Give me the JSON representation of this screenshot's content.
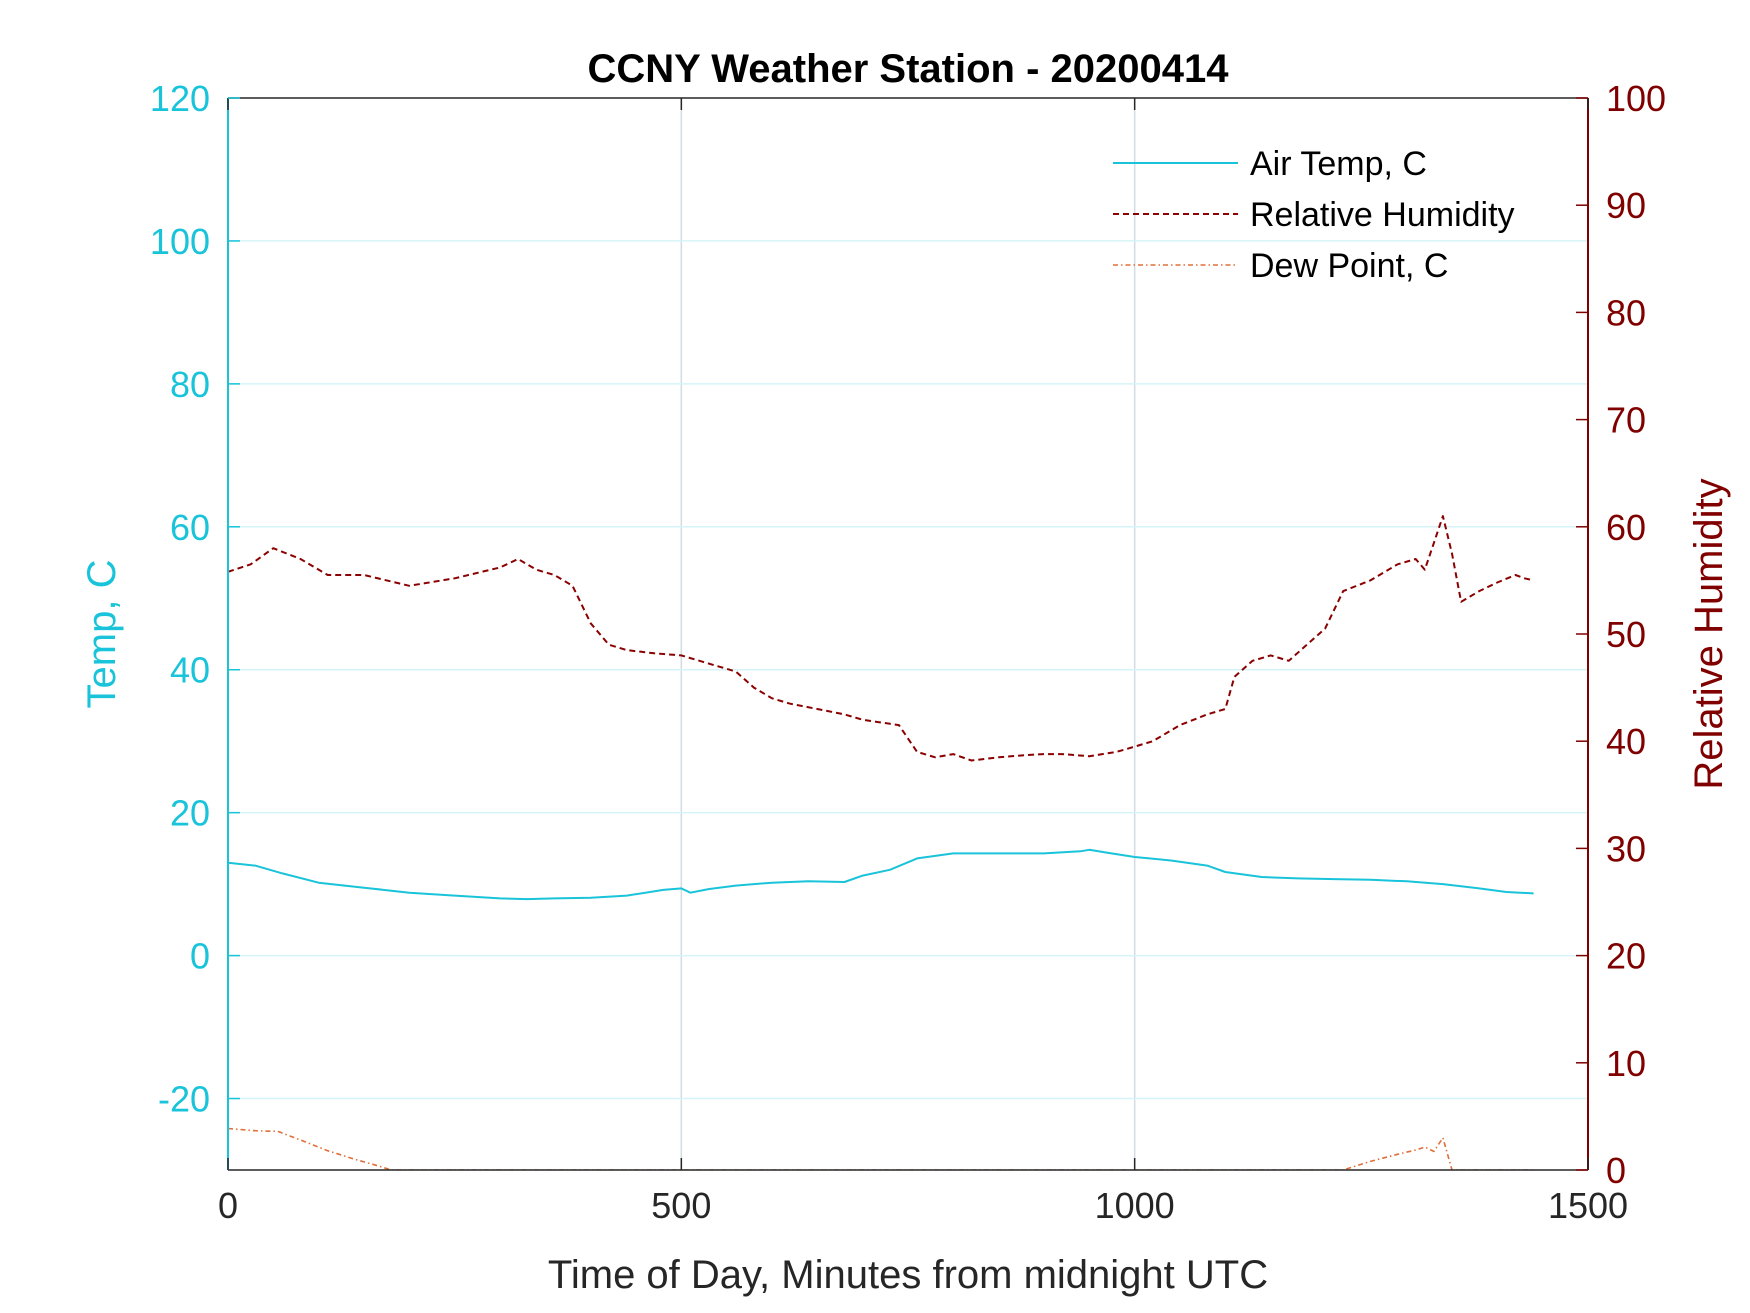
{
  "chart_data": {
    "type": "line",
    "title": "CCNY Weather Station - 20200414",
    "xlabel": "Time of Day, Minutes from midnight UTC",
    "ylabel_left": "Temp, C",
    "ylabel_right": "Relative Humidity",
    "xlim": [
      0,
      1500
    ],
    "ylim_left": [
      -30,
      120
    ],
    "ylim_right": [
      0,
      100
    ],
    "x_ticks": [
      0,
      500,
      1000,
      1500
    ],
    "y_ticks_left": [
      -20,
      0,
      20,
      40,
      60,
      80,
      100,
      120
    ],
    "y_ticks_right": [
      0,
      10,
      20,
      30,
      40,
      50,
      60,
      70,
      80,
      90,
      100
    ],
    "x_tick_labels": [
      "0",
      "500",
      "1000",
      "1500"
    ],
    "y_tick_labels_left": [
      "-20",
      "0",
      "20",
      "40",
      "60",
      "80",
      "100",
      "120"
    ],
    "y_tick_labels_right": [
      "0",
      "10",
      "20",
      "30",
      "40",
      "50",
      "60",
      "70",
      "80",
      "90",
      "100"
    ],
    "grid": true,
    "legend_position": "top-right",
    "colors": {
      "left_axis": "#19c3d9",
      "right_axis": "#800000",
      "air_temp": "#19c3d9",
      "humidity": "#8b0000",
      "dew_point": "#e0703a"
    },
    "series": [
      {
        "name": "Air Temp, C",
        "axis": "left",
        "style": "solid",
        "x": [
          0,
          30,
          60,
          100,
          150,
          200,
          250,
          300,
          330,
          360,
          400,
          440,
          480,
          500,
          510,
          530,
          560,
          600,
          640,
          680,
          700,
          730,
          760,
          800,
          850,
          900,
          940,
          950,
          970,
          1000,
          1040,
          1080,
          1100,
          1140,
          1180,
          1220,
          1260,
          1300,
          1340,
          1380,
          1410,
          1440
        ],
        "values": [
          13.0,
          12.6,
          11.5,
          10.2,
          9.5,
          8.8,
          8.4,
          8.0,
          7.9,
          8.0,
          8.1,
          8.4,
          9.2,
          9.4,
          8.8,
          9.3,
          9.8,
          10.2,
          10.4,
          10.3,
          11.2,
          12.0,
          13.6,
          14.3,
          14.3,
          14.3,
          14.6,
          14.8,
          14.4,
          13.8,
          13.3,
          12.6,
          11.7,
          11.0,
          10.8,
          10.7,
          10.6,
          10.4,
          10.0,
          9.4,
          8.9,
          8.7
        ]
      },
      {
        "name": "Relative Humidity",
        "axis": "right",
        "style": "dashed",
        "x": [
          0,
          25,
          50,
          80,
          110,
          150,
          200,
          250,
          300,
          320,
          340,
          360,
          380,
          400,
          420,
          440,
          470,
          500,
          520,
          540,
          560,
          580,
          600,
          620,
          650,
          680,
          700,
          740,
          760,
          780,
          800,
          820,
          850,
          880,
          900,
          920,
          950,
          980,
          1000,
          1020,
          1050,
          1080,
          1100,
          1110,
          1130,
          1150,
          1170,
          1190,
          1210,
          1230,
          1260,
          1290,
          1310,
          1320,
          1330,
          1340,
          1350,
          1360,
          1380,
          1400,
          1420,
          1430,
          1440
        ],
        "values": [
          55.8,
          56.5,
          58.0,
          57.0,
          55.5,
          55.5,
          54.5,
          55.2,
          56.2,
          57.0,
          56.0,
          55.5,
          54.5,
          51.0,
          49.0,
          48.5,
          48.2,
          48.0,
          47.5,
          47.0,
          46.5,
          45.0,
          44.0,
          43.5,
          43.0,
          42.5,
          42.0,
          41.5,
          39.0,
          38.5,
          38.8,
          38.2,
          38.5,
          38.7,
          38.8,
          38.8,
          38.6,
          39.0,
          39.5,
          40.0,
          41.5,
          42.5,
          43.0,
          46.0,
          47.5,
          48.0,
          47.5,
          49.0,
          50.5,
          54.0,
          55.0,
          56.5,
          57.0,
          56.0,
          58.5,
          61.0,
          57.5,
          53.0,
          54.0,
          54.8,
          55.5,
          55.2,
          55.0
        ]
      },
      {
        "name": "Dew Point, C",
        "axis": "left",
        "style": "dash-dot",
        "x": [
          0,
          30,
          55,
          80,
          110,
          140,
          165,
          180,
          1230,
          1260,
          1290,
          1310,
          1320,
          1330,
          1340,
          1350,
          1440
        ],
        "values": [
          -24.2,
          -24.5,
          -24.6,
          -25.8,
          -27.3,
          -28.5,
          -29.4,
          -30.0,
          -30.0,
          -28.8,
          -27.8,
          -27.2,
          -26.8,
          -27.4,
          -25.5,
          -30.0,
          -30.0
        ]
      }
    ]
  }
}
